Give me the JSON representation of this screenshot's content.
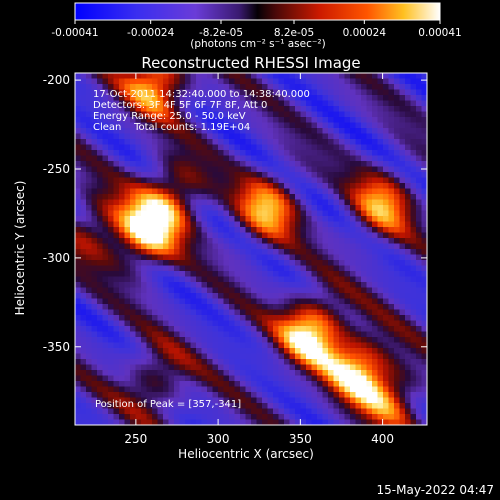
{
  "chart_data": {
    "type": "heatmap",
    "title": "Reconstructed RHESSI Image",
    "xlabel": "Heliocentric X (arcsec)",
    "ylabel": "Heliocentric Y (arcsec)",
    "xlim": [
      213,
      427
    ],
    "ylim": [
      -394,
      -196
    ],
    "x_ticks": [
      250,
      300,
      350,
      400
    ],
    "y_ticks": [
      -200,
      -250,
      -300,
      -350
    ],
    "colorbar": {
      "ticks": [
        "-0.00041",
        "-0.00024",
        "-8.2e-05",
        "8.2e-05",
        "0.00024",
        "0.00041"
      ],
      "tick_values": [
        -0.00041,
        -0.00024,
        -8.2e-05,
        8.2e-05,
        0.00024,
        0.00041
      ],
      "range": [
        -0.00041,
        0.00041
      ],
      "unit_label": "(photons cm⁻² s⁻¹ asec⁻²)"
    },
    "annotations": [
      "17-Oct-2011 14:32:40.000 to 14:38:40.000",
      "Detectors: 3F 4F 5F 6F 7F 8F, Att 0",
      "Energy Range: 25.0 - 50.0 keV",
      "Clean    Total counts: 1.19E+04"
    ],
    "peak_label": "Position of Peak = [357,-341]",
    "peak": [
      357,
      -341
    ],
    "bright_features": [
      {
        "x": 263,
        "y": -200,
        "value": 0.00036
      },
      {
        "x": 256,
        "y": -286,
        "value": 0.00038
      },
      {
        "x": 273,
        "y": -264,
        "value": 0.00026
      },
      {
        "x": 330,
        "y": -272,
        "value": 0.0003
      },
      {
        "x": 357,
        "y": -341,
        "value": 0.00041
      },
      {
        "x": 385,
        "y": -362,
        "value": 0.00036
      },
      {
        "x": 225,
        "y": -283,
        "value": 0.0002
      },
      {
        "x": 400,
        "y": -270,
        "value": 0.00028
      },
      {
        "x": 262,
        "y": -369,
        "value": 0.0002
      },
      {
        "x": 405,
        "y": -378,
        "value": 0.00024
      }
    ],
    "grid": false,
    "legend": "none"
  },
  "footer": {
    "date": "15-May-2022 04:47"
  }
}
